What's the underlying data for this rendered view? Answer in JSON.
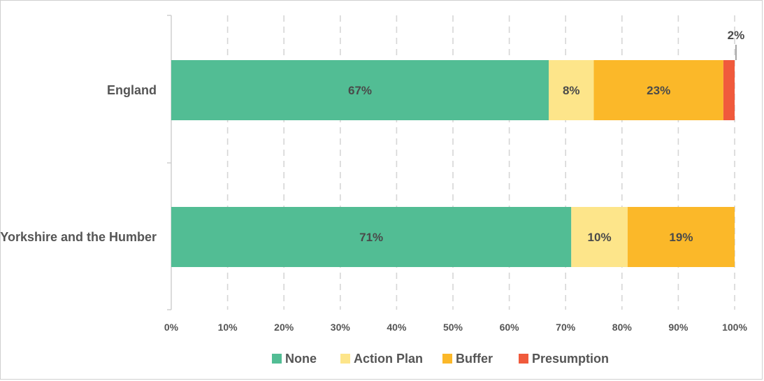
{
  "chart_data": {
    "type": "bar",
    "orientation": "horizontal",
    "stacked": true,
    "categories": [
      "England",
      "Yorkshire and the Humber"
    ],
    "series": [
      {
        "name": "None",
        "values": [
          67,
          71
        ],
        "labels": [
          "67%",
          "71%"
        ],
        "color": "#52bd94"
      },
      {
        "name": "Action Plan",
        "values": [
          8,
          10
        ],
        "labels": [
          "8%",
          "10%"
        ],
        "color": "#fde58a"
      },
      {
        "name": "Buffer",
        "values": [
          23,
          19
        ],
        "labels": [
          "23%",
          "19%"
        ],
        "color": "#fbb829"
      },
      {
        "name": "Presumption",
        "values": [
          2,
          0
        ],
        "labels": [
          "2%",
          ""
        ],
        "color": "#f05a3c"
      }
    ],
    "xlim": [
      0,
      100
    ],
    "xticks": [
      "0%",
      "10%",
      "20%",
      "30%",
      "40%",
      "50%",
      "60%",
      "70%",
      "80%",
      "90%",
      "100%"
    ],
    "grid": "vertical dashed",
    "legend": "bottom"
  }
}
